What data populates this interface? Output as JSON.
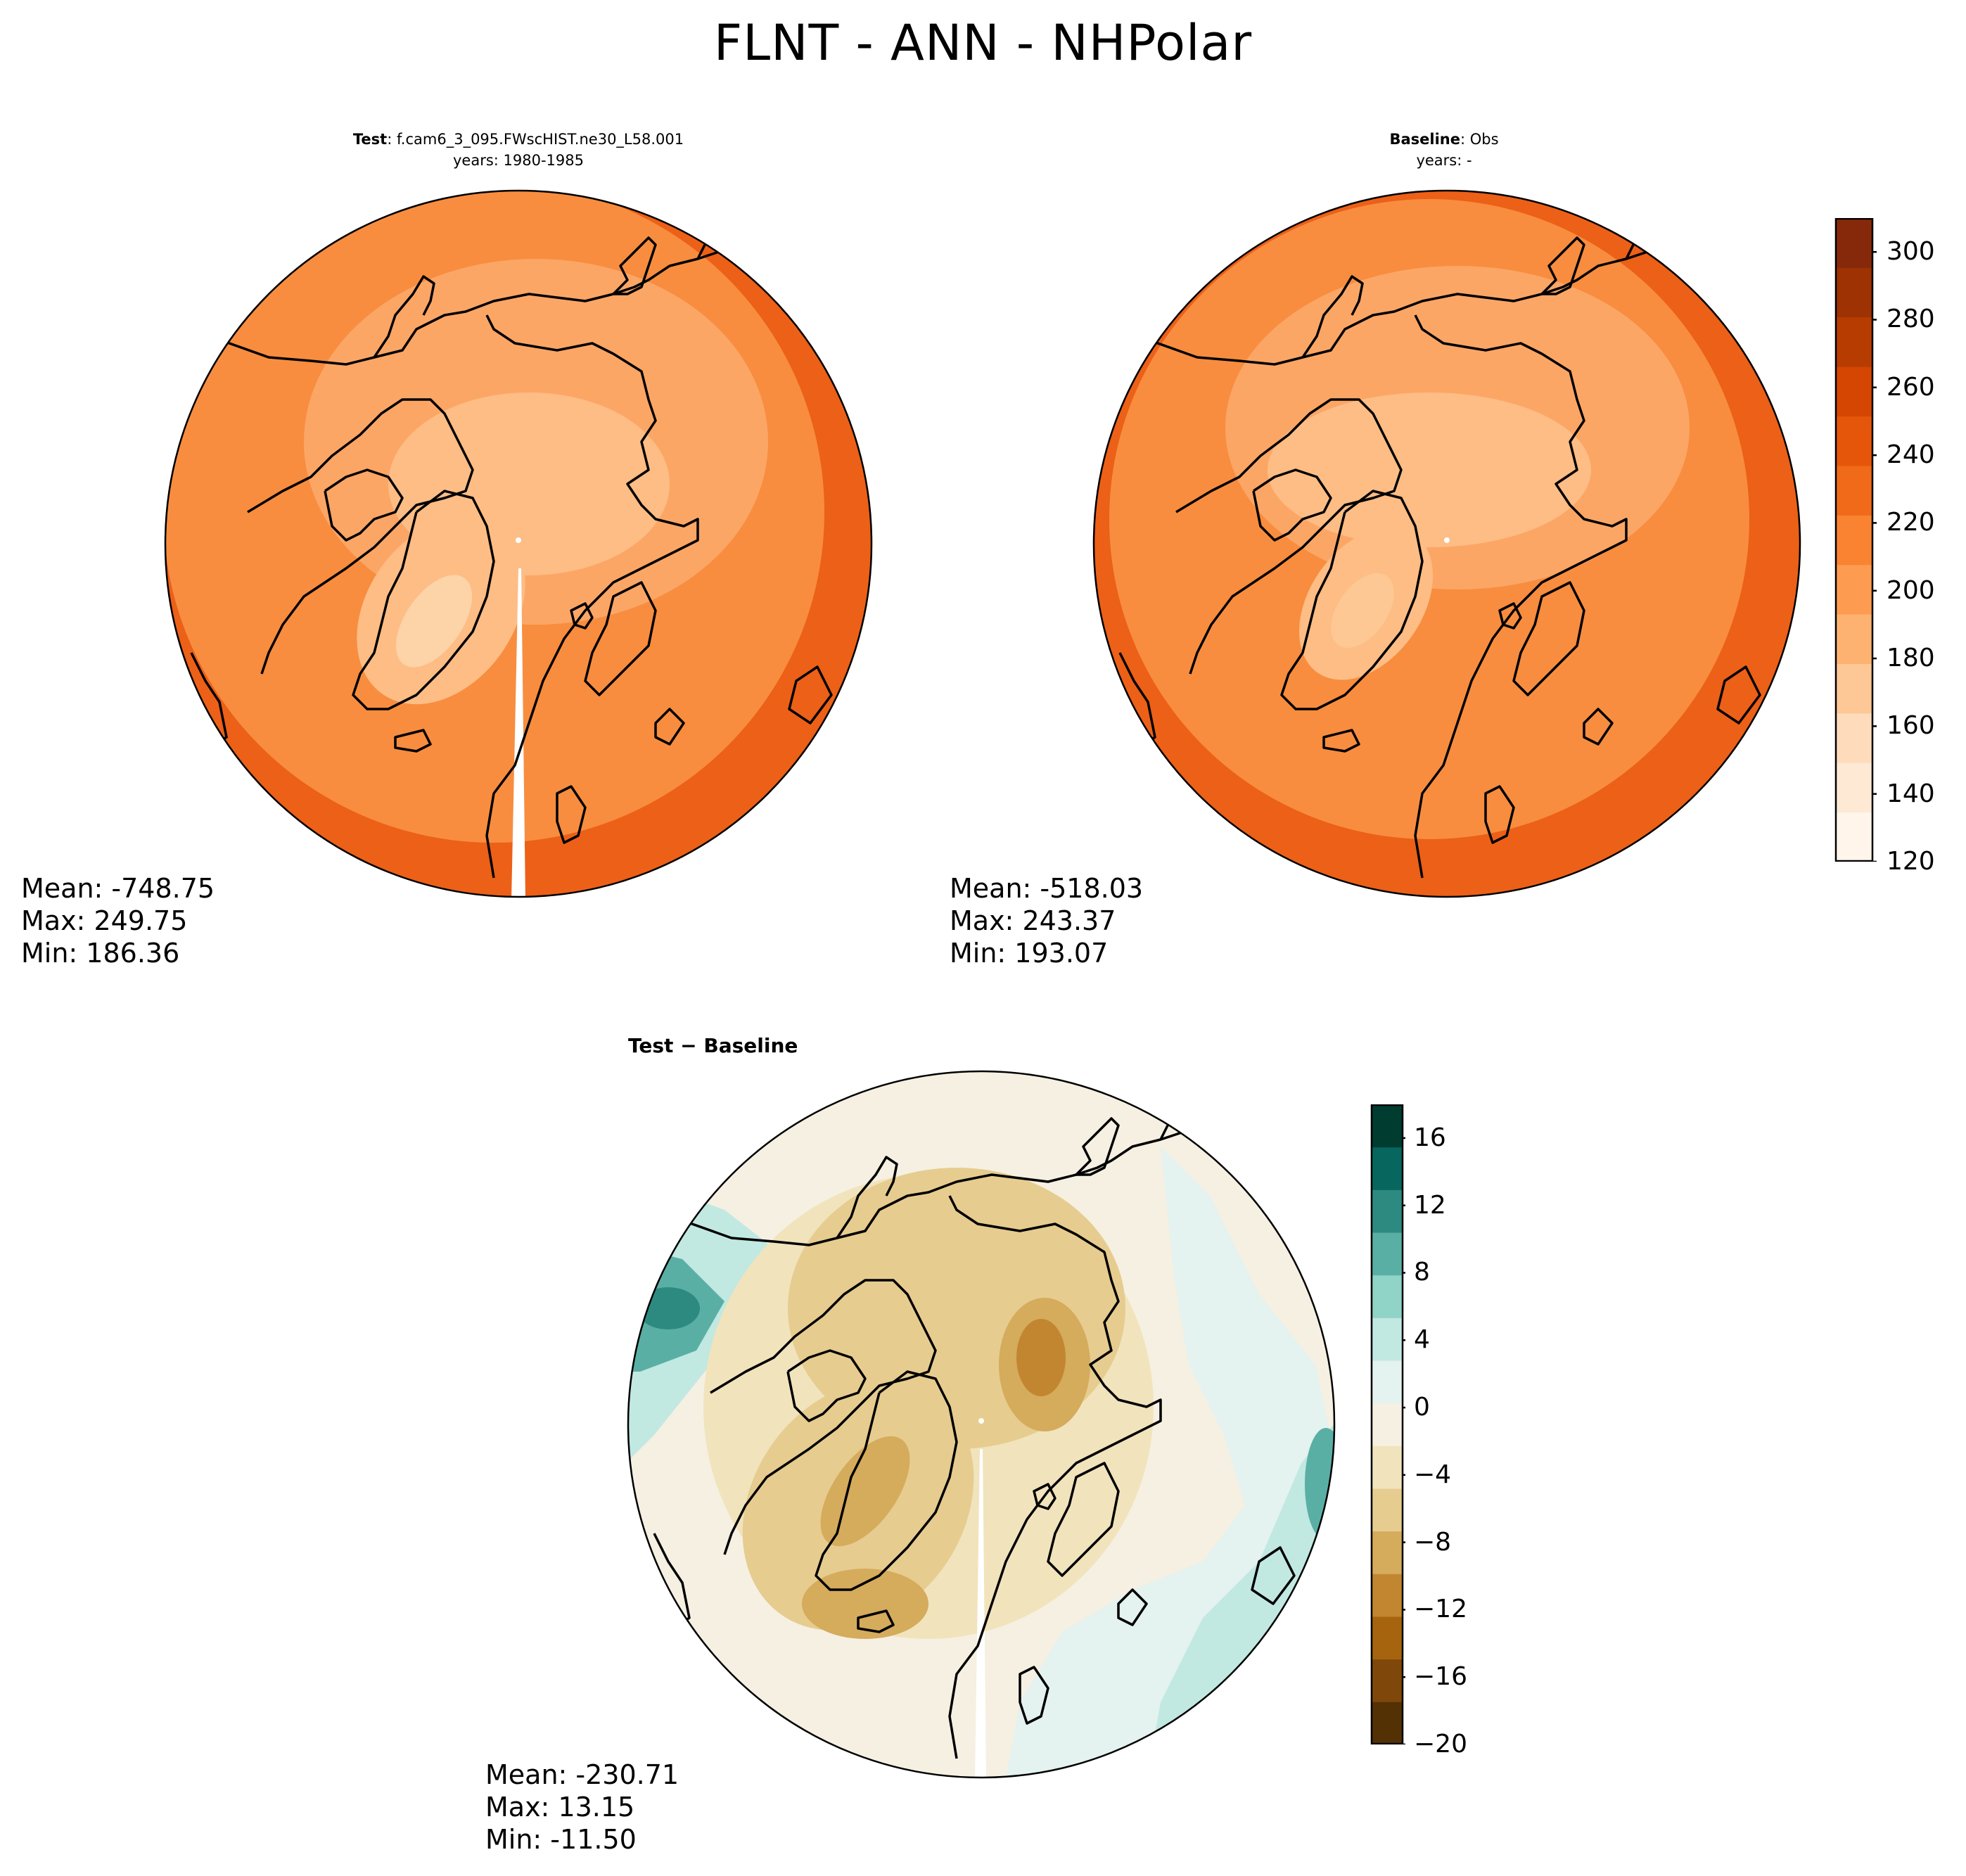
{
  "figure": {
    "title": "FLNT - ANN - NHPolar"
  },
  "panels": [
    {
      "id": "test",
      "label_bold": "Test",
      "label_rest": ": f.cam6_3_095.FWscHIST.ne30_L58.001",
      "years": "years: 1980-1985",
      "stats": {
        "mean": "Mean: -748.75",
        "max": "Max: 249.75",
        "min": "Min: 186.36"
      },
      "colors": {
        "outer": "#ec6018",
        "mid": "#f88d3f",
        "inner": "#fca666",
        "center": "#fdbd85",
        "hot": "#fdd3a8"
      }
    },
    {
      "id": "baseline",
      "label_bold": "Baseline",
      "label_rest": ": Obs",
      "years": "years: -",
      "stats": {
        "mean": "Mean: -518.03",
        "max": "Max: 243.37",
        "min": "Min: 193.07"
      },
      "colors": {
        "outer": "#ec6018",
        "mid": "#f88d3f",
        "inner": "#fca666",
        "center": "#fdbd85",
        "hot": "#fdc894"
      }
    },
    {
      "id": "diff",
      "label_bold": "Test − Baseline",
      "stats": {
        "mean": "Mean: -230.71",
        "max": "Max: 13.15",
        "min": "Min: -11.50"
      }
    }
  ],
  "colorbars": {
    "flnt": {
      "ticks": [
        "120",
        "140",
        "160",
        "180",
        "200",
        "220",
        "240",
        "260",
        "280",
        "300"
      ],
      "range": [
        120,
        310
      ],
      "colors": [
        "#fff5eb",
        "#fee9d4",
        "#fedcbb",
        "#fdc895",
        "#fdb272",
        "#fd9c51",
        "#f98331",
        "#f06a1a",
        "#e5560b",
        "#d44601",
        "#b73c02",
        "#9e3203",
        "#86290b"
      ]
    },
    "diff": {
      "ticks": [
        "16",
        "12",
        "8",
        "4",
        "0",
        "−4",
        "−8",
        "−12",
        "−16",
        "−20"
      ],
      "range": [
        -20,
        18
      ],
      "colors": [
        "#543005",
        "#7f4709",
        "#a6640f",
        "#c28630",
        "#d5ab5c",
        "#e6cc8f",
        "#f1e3bc",
        "#f5f0e2",
        "#e4f2f0",
        "#c2e8e2",
        "#90d3c7",
        "#5aafa5",
        "#2d8a80",
        "#07665e",
        "#003c30"
      ]
    }
  }
}
